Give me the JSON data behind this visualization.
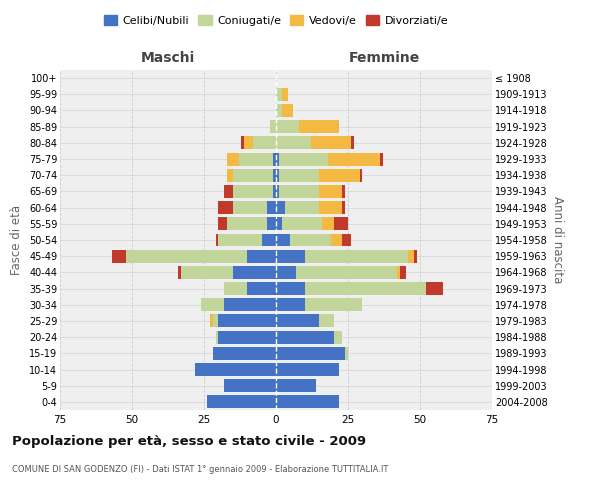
{
  "age_groups": [
    "0-4",
    "5-9",
    "10-14",
    "15-19",
    "20-24",
    "25-29",
    "30-34",
    "35-39",
    "40-44",
    "45-49",
    "50-54",
    "55-59",
    "60-64",
    "65-69",
    "70-74",
    "75-79",
    "80-84",
    "85-89",
    "90-94",
    "95-99",
    "100+"
  ],
  "birth_years": [
    "2004-2008",
    "1999-2003",
    "1994-1998",
    "1989-1993",
    "1984-1988",
    "1979-1983",
    "1974-1978",
    "1969-1973",
    "1964-1968",
    "1959-1963",
    "1954-1958",
    "1949-1953",
    "1944-1948",
    "1939-1943",
    "1934-1938",
    "1929-1933",
    "1924-1928",
    "1919-1923",
    "1914-1918",
    "1909-1913",
    "≤ 1908"
  ],
  "colors": {
    "celibe": "#4472C4",
    "coniugato": "#C2D69B",
    "vedovo": "#F4B942",
    "divorziato": "#C0392B"
  },
  "maschi": {
    "celibe": [
      24,
      18,
      28,
      22,
      20,
      20,
      18,
      10,
      15,
      10,
      5,
      3,
      3,
      1,
      1,
      1,
      0,
      0,
      0,
      0,
      0
    ],
    "coniugato": [
      0,
      0,
      0,
      0,
      1,
      2,
      8,
      8,
      18,
      42,
      15,
      14,
      12,
      14,
      14,
      12,
      8,
      2,
      0,
      0,
      0
    ],
    "vedovo": [
      0,
      0,
      0,
      0,
      0,
      1,
      0,
      0,
      0,
      0,
      0,
      0,
      0,
      0,
      2,
      4,
      3,
      0,
      0,
      0,
      0
    ],
    "divorziato": [
      0,
      0,
      0,
      0,
      0,
      0,
      0,
      0,
      1,
      5,
      1,
      3,
      5,
      3,
      0,
      0,
      1,
      0,
      0,
      0,
      0
    ]
  },
  "femmine": {
    "celibe": [
      22,
      14,
      22,
      24,
      20,
      15,
      10,
      10,
      7,
      10,
      5,
      2,
      3,
      1,
      1,
      1,
      0,
      0,
      0,
      0,
      0
    ],
    "coniugato": [
      0,
      0,
      0,
      1,
      3,
      5,
      20,
      42,
      35,
      36,
      14,
      14,
      12,
      14,
      14,
      17,
      12,
      8,
      2,
      2,
      0
    ],
    "vedovo": [
      0,
      0,
      0,
      0,
      0,
      0,
      0,
      0,
      1,
      2,
      4,
      4,
      8,
      8,
      14,
      18,
      14,
      14,
      4,
      2,
      0
    ],
    "divorziato": [
      0,
      0,
      0,
      0,
      0,
      0,
      0,
      6,
      2,
      1,
      3,
      5,
      1,
      1,
      1,
      1,
      1,
      0,
      0,
      0,
      0
    ]
  },
  "title": "Popolazione per età, sesso e stato civile - 2009",
  "subtitle": "COMUNE DI SAN GODENZO (FI) - Dati ISTAT 1° gennaio 2009 - Elaborazione TUTTITALIA.IT",
  "xlabel_left": "Maschi",
  "xlabel_right": "Femmine",
  "ylabel_left": "Fasce di età",
  "ylabel_right": "Anni di nascita",
  "xlim": 75,
  "legend_labels": [
    "Celibi/Nubili",
    "Coniugati/e",
    "Vedovi/e",
    "Divorziati/e"
  ],
  "bg_color": "#ffffff",
  "plot_bg_color": "#efefef",
  "grid_color": "#cccccc"
}
